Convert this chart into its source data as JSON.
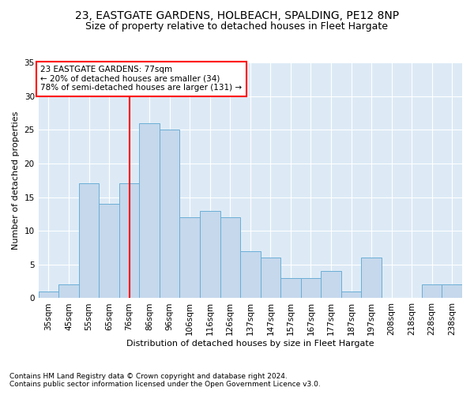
{
  "title": "23, EASTGATE GARDENS, HOLBEACH, SPALDING, PE12 8NP",
  "subtitle": "Size of property relative to detached houses in Fleet Hargate",
  "xlabel": "Distribution of detached houses by size in Fleet Hargate",
  "ylabel": "Number of detached properties",
  "categories": [
    "35sqm",
    "45sqm",
    "55sqm",
    "65sqm",
    "76sqm",
    "86sqm",
    "96sqm",
    "106sqm",
    "116sqm",
    "126sqm",
    "137sqm",
    "147sqm",
    "157sqm",
    "167sqm",
    "177sqm",
    "187sqm",
    "197sqm",
    "208sqm",
    "218sqm",
    "228sqm",
    "238sqm"
  ],
  "values": [
    1,
    2,
    17,
    14,
    17,
    26,
    25,
    12,
    13,
    12,
    7,
    6,
    3,
    3,
    4,
    1,
    6,
    0,
    0,
    2,
    2
  ],
  "bar_color": "#c5d8ec",
  "bar_edge_color": "#6aaed6",
  "red_line_index": 4,
  "annotation_line1": "23 EASTGATE GARDENS: 77sqm",
  "annotation_line2": "← 20% of detached houses are smaller (34)",
  "annotation_line3": "78% of semi-detached houses are larger (131) →",
  "ylim": [
    0,
    35
  ],
  "yticks": [
    0,
    5,
    10,
    15,
    20,
    25,
    30,
    35
  ],
  "footnote1": "Contains HM Land Registry data © Crown copyright and database right 2024.",
  "footnote2": "Contains public sector information licensed under the Open Government Licence v3.0.",
  "bg_color": "#ddeaf6",
  "title_fontsize": 10,
  "subtitle_fontsize": 9,
  "axis_label_fontsize": 8,
  "tick_fontsize": 7.5,
  "annot_fontsize": 7.5,
  "footnote_fontsize": 6.5
}
